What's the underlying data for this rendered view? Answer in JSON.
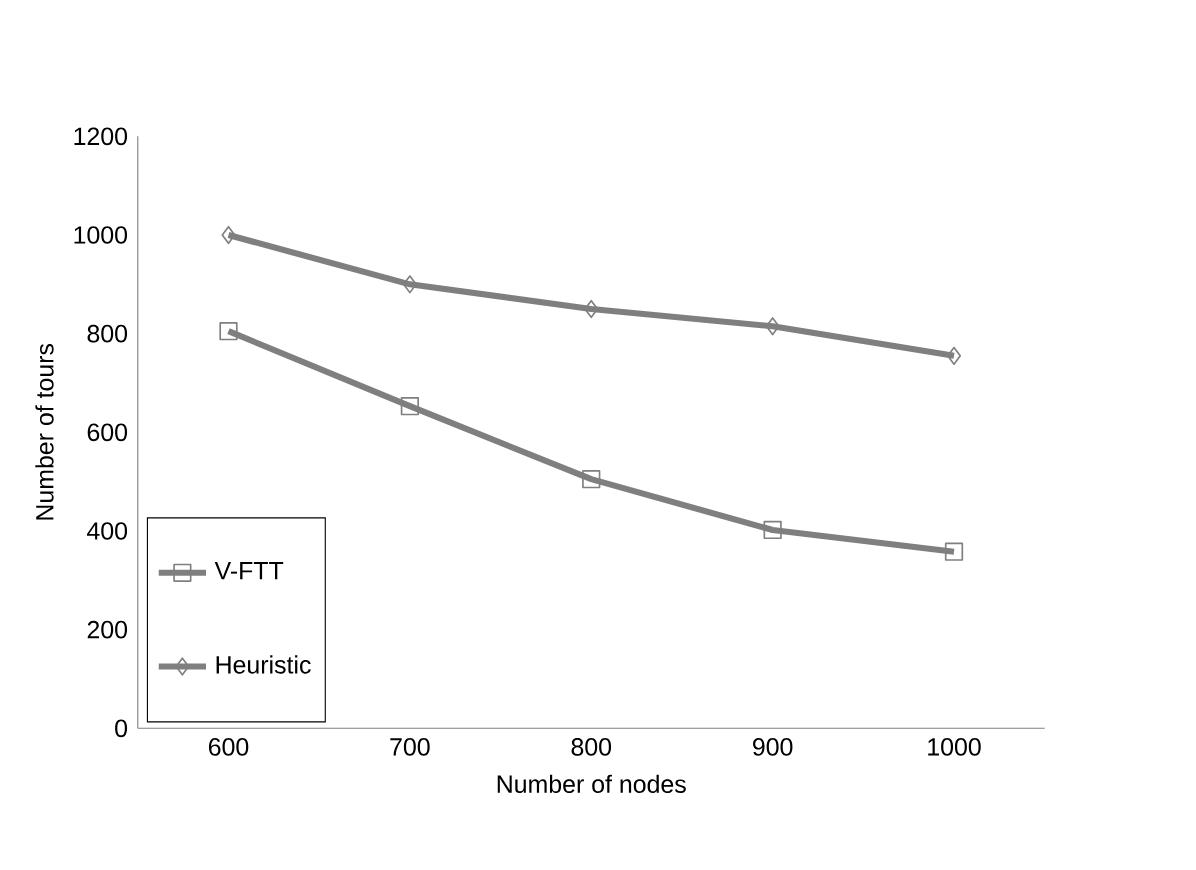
{
  "chart_data": {
    "type": "line",
    "xlabel": "Number of nodes",
    "ylabel": "Number of tours",
    "categories": [
      "600",
      "700",
      "800",
      "900",
      "1000"
    ],
    "series": [
      {
        "name": "V-FTT",
        "color": "#7f7f7f",
        "marker": "square",
        "values": [
          805,
          653,
          505,
          402,
          358
        ]
      },
      {
        "name": "Heuristic",
        "color": "#7f7f7f",
        "marker": "diamond",
        "values": [
          1000,
          900,
          850,
          815,
          755
        ]
      }
    ],
    "ylim": [
      0,
      1200
    ],
    "yticks": [
      0,
      200,
      400,
      600,
      800,
      1000,
      1200
    ],
    "grid": false,
    "legend": "bottom left",
    "line_style": "solid"
  }
}
